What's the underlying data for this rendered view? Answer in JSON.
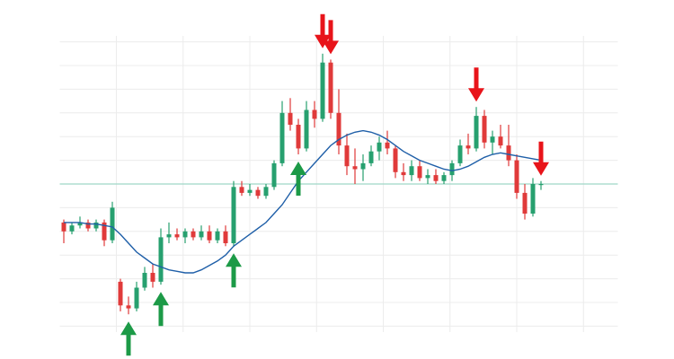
{
  "chart_data": {
    "type": "candlestick",
    "xlim": [
      -0.5,
      68.5
    ],
    "ylim": [
      0,
      100
    ],
    "xticks": [
      6.5,
      14.75,
      23,
      31.25,
      39.5,
      47.75,
      56,
      64.25
    ],
    "yticks": [
      2,
      10,
      18,
      26,
      34,
      42,
      58,
      66,
      74,
      82,
      90,
      98
    ],
    "grid": true,
    "grid_color": "#ececec",
    "reference_line": 50,
    "reference_line_color": "#9fd8c8",
    "up_color": "#27a06f",
    "down_color": "#e03a3a",
    "candles": {
      "open": [
        37,
        34,
        36,
        37,
        35,
        37,
        31,
        17,
        9,
        8,
        15,
        20,
        17,
        32,
        33,
        32,
        34,
        32,
        34,
        31,
        34,
        30,
        49,
        47,
        48,
        46,
        49,
        57,
        74,
        70,
        62,
        75,
        72,
        91,
        74,
        63,
        56,
        55,
        57,
        61,
        64,
        62,
        54,
        53,
        56,
        52,
        53,
        51,
        53,
        57,
        63,
        62,
        73,
        64,
        66,
        63,
        58,
        47,
        40,
        50
      ],
      "high": [
        38,
        37,
        39,
        38,
        38,
        38,
        44,
        18,
        12,
        17,
        22,
        23,
        35,
        37,
        35,
        35,
        35,
        36,
        36,
        35,
        36,
        51,
        51,
        50,
        49,
        50,
        58,
        78,
        79,
        72,
        78,
        78,
        94,
        92,
        82,
        67,
        62,
        60,
        63,
        66,
        68,
        63,
        57,
        58,
        58,
        55,
        55,
        54,
        58,
        65,
        67,
        76,
        75,
        68,
        70,
        70,
        60,
        50,
        52,
        51
      ],
      "low": [
        30,
        33,
        35,
        34,
        34,
        29,
        30,
        7,
        6,
        7,
        14,
        15,
        16,
        30,
        31,
        30,
        31,
        31,
        30,
        30,
        29,
        29,
        46,
        46,
        45,
        45,
        48,
        56,
        68,
        60,
        61,
        69,
        71,
        72,
        60,
        53,
        50,
        51,
        56,
        58,
        60,
        52,
        51,
        51,
        51,
        50,
        50,
        50,
        51,
        56,
        60,
        61,
        62,
        60,
        62,
        56,
        45,
        38,
        39,
        48
      ],
      "close": [
        34,
        36,
        37,
        35,
        37,
        31,
        42,
        9,
        8,
        15,
        20,
        17,
        32,
        33,
        32,
        34,
        32,
        34,
        31,
        34,
        30,
        49,
        47,
        48,
        46,
        49,
        57,
        74,
        70,
        62,
        75,
        72,
        91,
        74,
        63,
        56,
        55,
        57,
        61,
        64,
        62,
        54,
        53,
        56,
        52,
        53,
        51,
        53,
        57,
        63,
        62,
        73,
        64,
        66,
        63,
        58,
        47,
        40,
        50,
        50
      ]
    },
    "moving_average": {
      "color": "#1f5fa8",
      "values": [
        37,
        37,
        37,
        36.5,
        36.5,
        36,
        35.5,
        33,
        30,
        27,
        25,
        23,
        22,
        21,
        20.5,
        20,
        20,
        21,
        22.5,
        24,
        26,
        29,
        31,
        33,
        35,
        37,
        40,
        43,
        47,
        51,
        54,
        57,
        60,
        63,
        65,
        66.5,
        67.5,
        68,
        67.5,
        66.5,
        65,
        63,
        61,
        59.5,
        58,
        57,
        56,
        55,
        54.5,
        55,
        56,
        57.5,
        59,
        60,
        60.5,
        60,
        59.5,
        59,
        58.5,
        58
      ]
    },
    "buy_signals": [
      8,
      12,
      21,
      29
    ],
    "buy_color": "#1c9a47",
    "sell_signals": [
      32,
      33,
      51,
      59
    ],
    "sell_color": "#e8141a"
  }
}
